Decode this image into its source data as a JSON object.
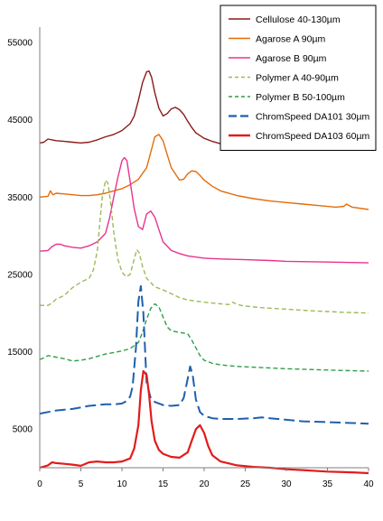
{
  "chart_data": {
    "type": "line",
    "title": "",
    "xlabel": "",
    "ylabel": "",
    "xlim": [
      0,
      40
    ],
    "ylim": [
      0,
      55000
    ],
    "x_ticks": [
      0,
      5,
      10,
      15,
      20,
      25,
      30,
      35,
      40
    ],
    "x_tick_labels": [
      "0",
      "5",
      "10",
      "15",
      "20",
      "25",
      "30",
      "35",
      "40"
    ],
    "y_ticks": [
      5000,
      15000,
      25000,
      35000,
      45000,
      55000
    ],
    "y_tick_labels": [
      "5000",
      "15000",
      "25000",
      "35000",
      "45000",
      "55000"
    ],
    "grid": false,
    "legend_position": "top-right",
    "series": [
      {
        "name": "Cellulose 40-130µm",
        "color": "#8B1A1A",
        "dash": "solid",
        "x": [
          0,
          0.5,
          1,
          2,
          3,
          4,
          5,
          6,
          7,
          8,
          9,
          10,
          11,
          11.5,
          12,
          12.5,
          13,
          13.3,
          13.6,
          14,
          14.5,
          15,
          15.5,
          16,
          16.5,
          17,
          17.5,
          18,
          18.5,
          19,
          20,
          21,
          22,
          23
        ],
        "y": [
          42000,
          42100,
          42500,
          42300,
          42200,
          42100,
          42000,
          42100,
          42400,
          42800,
          43100,
          43600,
          44500,
          45500,
          47500,
          49800,
          51200,
          51300,
          50500,
          48500,
          46500,
          45500,
          45800,
          46400,
          46600,
          46300,
          45700,
          44800,
          44000,
          43300,
          42600,
          42200,
          41900,
          41700
        ]
      },
      {
        "name": "Agarose A 90µm",
        "color": "#E36C0A",
        "dash": "solid",
        "x": [
          0,
          1,
          1.3,
          1.6,
          2,
          3,
          4,
          5,
          6,
          7,
          8,
          9,
          10,
          11,
          12,
          13,
          13.5,
          14,
          14.5,
          15,
          15.5,
          16,
          17,
          17.5,
          18,
          18.5,
          19,
          19.5,
          20,
          21,
          22,
          24,
          26,
          28,
          30,
          32,
          34,
          36,
          37,
          37.3,
          38,
          40
        ],
        "y": [
          35000,
          35100,
          35800,
          35300,
          35500,
          35400,
          35300,
          35200,
          35200,
          35300,
          35500,
          35800,
          36100,
          36600,
          37300,
          38800,
          40800,
          42800,
          43100,
          42300,
          40500,
          38800,
          37200,
          37300,
          38000,
          38400,
          38300,
          37800,
          37200,
          36400,
          35800,
          35200,
          34800,
          34500,
          34300,
          34100,
          33900,
          33700,
          33800,
          34100,
          33700,
          33400
        ]
      },
      {
        "name": "Agarose B 90µm",
        "color": "#E8338F",
        "dash": "solid",
        "x": [
          0,
          1,
          1.5,
          2,
          2.5,
          3,
          4,
          5,
          6,
          7,
          8,
          8.5,
          9,
          9.5,
          10,
          10.3,
          10.6,
          11,
          11.5,
          12,
          12.5,
          13,
          13.5,
          14,
          14.5,
          15,
          16,
          17,
          18,
          20,
          22,
          25,
          28,
          30,
          35,
          40
        ],
        "y": [
          28000,
          28100,
          28600,
          28900,
          28900,
          28700,
          28500,
          28400,
          28700,
          29200,
          30300,
          32300,
          35000,
          37500,
          39700,
          40100,
          39700,
          37000,
          33500,
          31200,
          30800,
          32800,
          33200,
          32400,
          30800,
          29200,
          28100,
          27700,
          27400,
          27100,
          27000,
          26900,
          26800,
          26700,
          26600,
          26500
        ]
      },
      {
        "name": "Polymer A 40-90µm",
        "color": "#9BBB59",
        "dash": "dashed",
        "x": [
          0,
          1,
          1.5,
          2,
          3,
          4,
          5,
          6,
          6.5,
          7,
          7.3,
          7.6,
          8,
          8.3,
          8.6,
          9,
          9.5,
          10,
          10.5,
          11,
          11.5,
          11.8,
          12.1,
          12.5,
          13,
          14,
          15,
          16,
          17,
          18,
          20,
          22,
          23,
          23.5,
          24,
          25,
          27,
          30,
          33,
          35,
          37,
          40
        ],
        "y": [
          21000,
          21000,
          21300,
          21800,
          22300,
          23300,
          24000,
          24500,
          25500,
          28000,
          31500,
          35000,
          37200,
          36800,
          34500,
          30500,
          27000,
          25300,
          24700,
          25000,
          27000,
          28200,
          27800,
          26000,
          24500,
          23400,
          23000,
          22500,
          22000,
          21700,
          21400,
          21200,
          21100,
          21400,
          21100,
          20900,
          20700,
          20500,
          20300,
          20200,
          20100,
          20000
        ]
      },
      {
        "name": "Polymer B 50-100µm",
        "color": "#2E9E48",
        "dash": "dashed",
        "x": [
          0,
          0.5,
          1,
          2,
          3,
          4,
          5,
          6,
          7,
          8,
          9,
          10,
          11,
          12,
          12.5,
          13,
          13.5,
          14,
          14.5,
          15,
          15.5,
          16,
          16.5,
          17,
          18,
          18.5,
          19,
          19.5,
          20,
          21,
          22,
          24,
          26,
          28,
          30,
          33,
          36,
          40
        ],
        "y": [
          14000,
          14200,
          14500,
          14300,
          14100,
          13800,
          13900,
          14100,
          14400,
          14700,
          14900,
          15100,
          15400,
          16200,
          17500,
          19200,
          20600,
          21200,
          20800,
          19500,
          18200,
          17700,
          17600,
          17500,
          17300,
          16500,
          15500,
          14500,
          13900,
          13500,
          13300,
          13100,
          13000,
          12900,
          12800,
          12700,
          12600,
          12500
        ]
      },
      {
        "name": "ChromSpeed DA101 30µm",
        "color": "#1F5FAE",
        "dash": "long-dash",
        "x": [
          0,
          1,
          2,
          3,
          4,
          5,
          6,
          7,
          8,
          9,
          10,
          10.5,
          11,
          11.3,
          11.7,
          12,
          12.3,
          12.6,
          13,
          13.5,
          14,
          15,
          16,
          17,
          17.5,
          18,
          18.3,
          18.6,
          19,
          19.5,
          20,
          21,
          22,
          24,
          26,
          27,
          28,
          30,
          32,
          35,
          40
        ],
        "y": [
          7000,
          7200,
          7400,
          7500,
          7600,
          7800,
          8000,
          8100,
          8200,
          8200,
          8300,
          8600,
          9200,
          10500,
          15500,
          21500,
          23500,
          20000,
          11000,
          9000,
          8500,
          8100,
          8000,
          8100,
          9000,
          11500,
          13100,
          12000,
          8800,
          7200,
          6700,
          6400,
          6300,
          6300,
          6400,
          6500,
          6400,
          6200,
          6000,
          5900,
          5700
        ]
      },
      {
        "name": "ChromSpeed DA103 60µm",
        "color": "#E31B1B",
        "dash": "solid",
        "x": [
          0,
          1,
          1.5,
          2,
          3,
          4,
          5,
          6,
          7,
          8,
          9,
          10,
          11,
          11.5,
          12,
          12.3,
          12.6,
          13,
          13.3,
          13.6,
          14,
          14.5,
          15,
          16,
          17,
          18,
          18.5,
          19,
          19.5,
          20,
          20.5,
          21,
          22,
          24,
          26,
          28,
          30,
          32,
          35,
          38,
          40
        ],
        "y": [
          0,
          300,
          700,
          600,
          500,
          400,
          250,
          700,
          800,
          700,
          700,
          800,
          1200,
          2500,
          5500,
          10000,
          12500,
          12000,
          9500,
          6000,
          3500,
          2300,
          1800,
          1400,
          1300,
          2000,
          3500,
          5000,
          5500,
          4500,
          2800,
          1600,
          800,
          300,
          100,
          0,
          -200,
          -300,
          -500,
          -600,
          -700
        ]
      }
    ]
  }
}
